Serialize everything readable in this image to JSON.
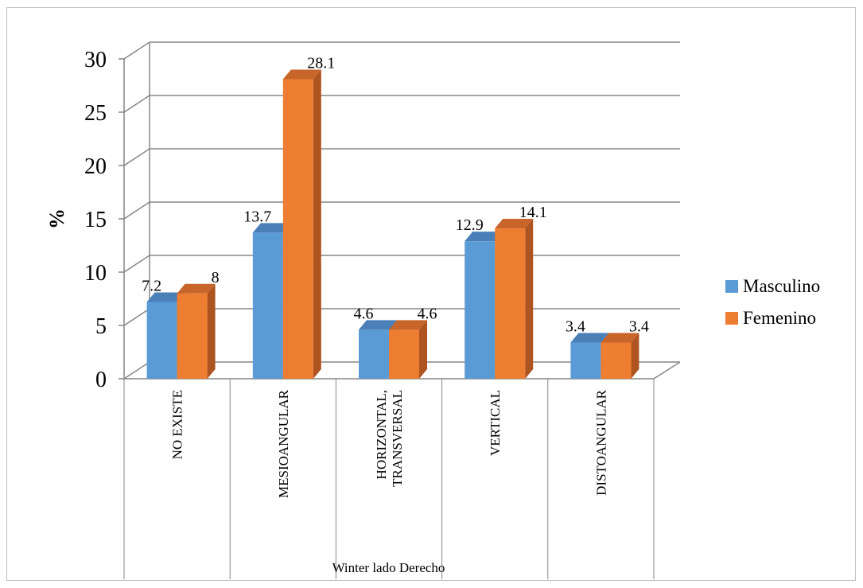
{
  "chart_data": {
    "type": "bar",
    "style": "3d-clustered-column",
    "categories": [
      "NO EXISTE",
      "MESIOANGULAR",
      "HORIZONTAL, TRANSVERSAL",
      "VERTICAL",
      "DISTOANGULAR"
    ],
    "category_lines": [
      [
        "NO EXISTE"
      ],
      [
        "MESIOANGULAR"
      ],
      [
        "HORIZONTAL,",
        "TRANSVERSAL"
      ],
      [
        "VERTICAL"
      ],
      [
        "DISTOANGULAR"
      ]
    ],
    "series": [
      {
        "name": "Masculino",
        "values": [
          7.2,
          13.7,
          4.6,
          12.9,
          3.4
        ],
        "color": "#5b9bd5",
        "top_color": "#4a7fb8",
        "side_color": "#3f6fa3"
      },
      {
        "name": "Femenino",
        "values": [
          8,
          28.1,
          4.6,
          14.1,
          3.4
        ],
        "color": "#ed7d31",
        "top_color": "#c8652a",
        "side_color": "#ad5420"
      }
    ],
    "data_labels": [
      [
        "7.2",
        "13.7",
        "4.6",
        "12.9",
        "3.4"
      ],
      [
        "8",
        "28.1",
        "4.6",
        "14.1",
        "3.4"
      ]
    ],
    "ylabel": "%",
    "xlabel": "Winter lado Derecho",
    "ylim": [
      0,
      30
    ],
    "yticks": [
      0,
      5,
      10,
      15,
      20,
      25,
      30
    ],
    "grid": true,
    "legend_position": "right"
  }
}
